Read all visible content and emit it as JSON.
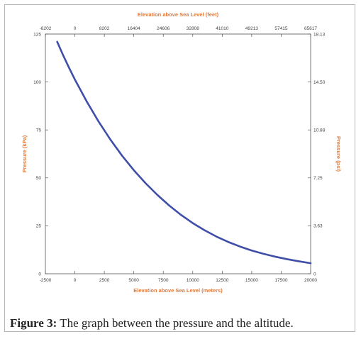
{
  "chart_data": {
    "type": "line",
    "title": "",
    "x_bottom": {
      "label": "Elevation above Sea Level (meters)",
      "ticks": [
        "-2500",
        "0",
        "2500",
        "5000",
        "7500",
        "10000",
        "12500",
        "15000",
        "17500",
        "20000"
      ],
      "range": [
        -2500,
        20000
      ]
    },
    "x_top": {
      "label": "Elevation above Sea Level (feet)",
      "ticks": [
        "-8202",
        "0",
        "8202",
        "16404",
        "24606",
        "32808",
        "41010",
        "49213",
        "57415",
        "65617"
      ]
    },
    "y_left": {
      "label": "Pressure (kPa)",
      "ticks": [
        "0",
        "25",
        "50",
        "75",
        "100",
        "125"
      ],
      "range": [
        0,
        125
      ]
    },
    "y_right": {
      "label": "Pressure (psi)",
      "ticks": [
        "0",
        "3.63",
        "7.25",
        "10.88",
        "14.50",
        "18.13"
      ]
    },
    "grid": false,
    "series": [
      {
        "color": "#3f4fa8",
        "x": [
          -1500,
          -1000,
          -500,
          0,
          1000,
          2000,
          3000,
          4000,
          5000,
          6000,
          7000,
          8000,
          9000,
          10000,
          11000,
          12000,
          13000,
          14000,
          15000,
          16000,
          17000,
          18000,
          19000,
          20000
        ],
        "y": [
          121,
          114,
          107.5,
          101.3,
          89.9,
          79.5,
          70.1,
          61.6,
          54,
          47.2,
          41.1,
          35.6,
          30.7,
          26.4,
          22.7,
          19.4,
          16.6,
          14.2,
          12.1,
          10.4,
          8.9,
          7.6,
          6.5,
          5.5
        ]
      }
    ]
  },
  "caption": {
    "label": "Figure 3:",
    "text": " The graph between the pressure and the altitude."
  }
}
